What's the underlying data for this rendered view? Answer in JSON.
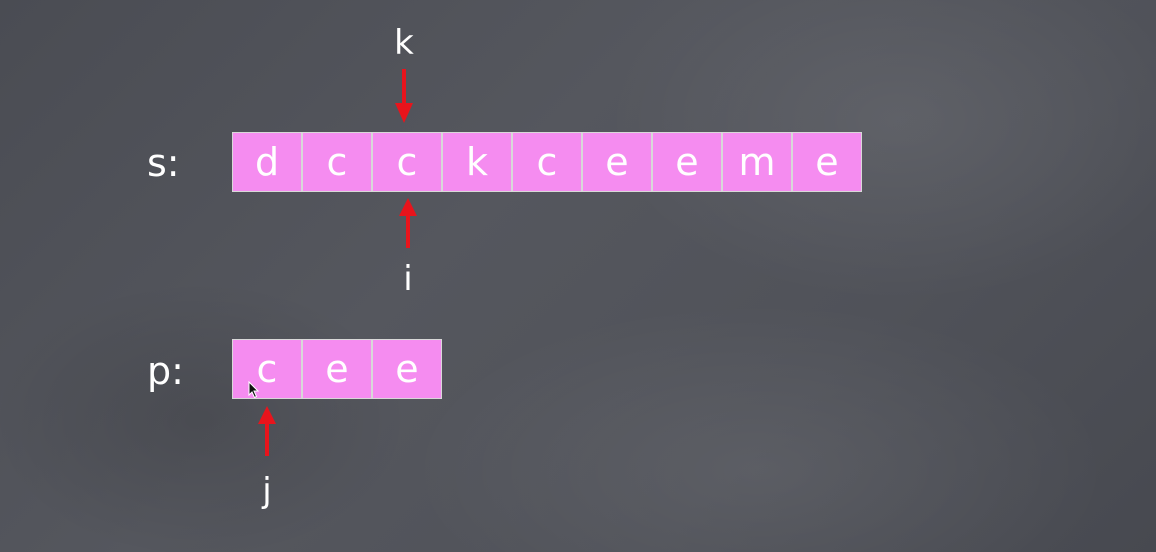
{
  "strings": {
    "s": {
      "label": "s:",
      "cells": [
        "d",
        "c",
        "c",
        "k",
        "c",
        "e",
        "e",
        "m",
        "e"
      ]
    },
    "p": {
      "label": "p:",
      "cells": [
        "c",
        "e",
        "e"
      ]
    }
  },
  "pointers": {
    "k": "k",
    "i": "i",
    "j": "j"
  },
  "colors": {
    "cell_fill": "#f58cf0",
    "arrow": "#e8141c",
    "text": "#ffffff"
  }
}
